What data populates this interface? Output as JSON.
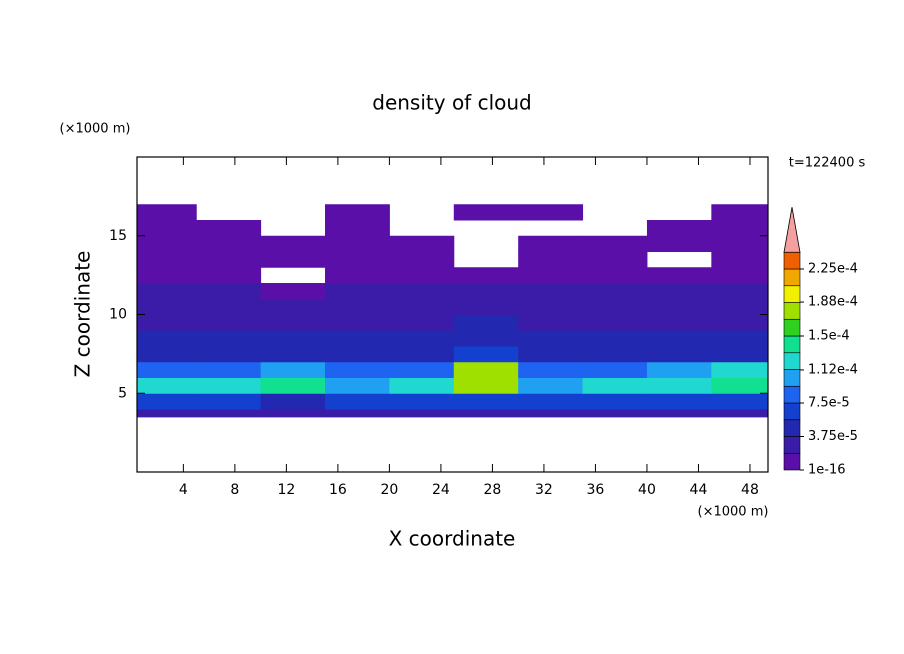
{
  "chart_data": {
    "type": "contour",
    "title": "density of cloud",
    "xlabel": "X coordinate",
    "ylabel": "Z coordinate",
    "xunit": "(×1000 m)",
    "yunit": "(×1000 m)",
    "time_label": "t=122400 s",
    "xlim": [
      0.4,
      49.4
    ],
    "ylim": [
      0,
      20
    ],
    "xticks": [
      4,
      8,
      12,
      16,
      20,
      24,
      28,
      32,
      36,
      40,
      44,
      48
    ],
    "yticks": [
      5,
      10,
      15
    ],
    "x_edges": [
      0,
      5,
      10,
      15,
      20,
      25,
      30,
      35,
      40,
      45,
      50
    ],
    "z_edges": [
      3.5,
      4,
      5,
      6,
      7,
      8,
      9,
      10,
      11,
      12,
      13,
      14,
      15,
      16,
      17
    ],
    "values": [
      [
        2e-05,
        2e-05,
        2e-05,
        2e-05,
        2e-05,
        2e-05,
        2e-05,
        2e-05,
        2e-05,
        2e-05
      ],
      [
        6e-05,
        7e-05,
        5e-05,
        6e-05,
        6e-05,
        7e-05,
        6e-05,
        6e-05,
        6e-05,
        6e-05
      ],
      [
        0.00012,
        0.00013,
        0.00014,
        0.00011,
        0.00012,
        0.00017,
        0.00011,
        0.00012,
        0.00013,
        0.00014
      ],
      [
        9e-05,
        9e-05,
        0.0001,
        8e-05,
        9e-05,
        0.00018,
        9e-05,
        9e-05,
        0.0001,
        0.00012
      ],
      [
        5e-05,
        5e-05,
        4.5e-05,
        5e-05,
        5e-05,
        6e-05,
        5e-05,
        5e-05,
        5e-05,
        5e-05
      ],
      [
        4e-05,
        4e-05,
        3.8e-05,
        4e-05,
        4e-05,
        4.5e-05,
        4e-05,
        4e-05,
        3.8e-05,
        4e-05
      ],
      [
        3e-05,
        3e-05,
        3e-05,
        3e-05,
        3.5e-05,
        4e-05,
        3.5e-05,
        3e-05,
        3e-05,
        3e-05
      ],
      [
        2.5e-05,
        2.5e-05,
        2e-05,
        2.5e-05,
        2.5e-05,
        3e-05,
        2.5e-05,
        2e-05,
        2.5e-05,
        2.5e-05
      ],
      [
        2e-05,
        2e-05,
        1.8e-05,
        2e-05,
        2e-05,
        2e-05,
        2e-05,
        2e-05,
        2e-05,
        2e-05
      ],
      [
        1.5e-05,
        1.5e-05,
        null,
        1.5e-05,
        1.5e-05,
        1.5e-05,
        1.5e-05,
        1.5e-05,
        1.5e-05,
        1.5e-05
      ],
      [
        1e-05,
        1e-05,
        1e-05,
        1e-05,
        1e-05,
        null,
        1e-05,
        1e-05,
        null,
        1e-05
      ],
      [
        1e-05,
        1e-05,
        1e-05,
        1e-05,
        1e-05,
        null,
        1e-05,
        1e-05,
        1e-05,
        1e-05
      ],
      [
        5e-06,
        5e-06,
        null,
        5e-06,
        null,
        null,
        null,
        null,
        5e-06,
        5e-06
      ],
      [
        5e-06,
        null,
        null,
        5e-06,
        null,
        5e-06,
        5e-06,
        null,
        null,
        5e-06
      ]
    ],
    "colorbar": {
      "levels": [
        1e-16,
        1.875e-05,
        3.75e-05,
        5.625e-05,
        7.5e-05,
        9.375e-05,
        0.0001125,
        0.00013125,
        0.00015,
        0.00016875,
        0.0001875,
        0.00020625,
        0.000225,
        0.00024375
      ],
      "colors": [
        "#5a10a8",
        "#3a1ca8",
        "#2228b0",
        "#1440d0",
        "#1e64f0",
        "#20a0f0",
        "#20d8d0",
        "#10e090",
        "#30d020",
        "#a0e000",
        "#f0f000",
        "#f0a800",
        "#f06000"
      ],
      "extend_color": "#f4a0a0",
      "ticks": [
        {
          "value": 1e-16,
          "label": "1e-16"
        },
        {
          "value": 3.75e-05,
          "label": "3.75e-5"
        },
        {
          "value": 7.5e-05,
          "label": "7.5e-5"
        },
        {
          "value": 0.000112,
          "label": "1.12e-4"
        },
        {
          "value": 0.00015,
          "label": "1.5e-4"
        },
        {
          "value": 0.000188,
          "label": "1.88e-4"
        },
        {
          "value": 0.000225,
          "label": "2.25e-4"
        }
      ]
    }
  }
}
